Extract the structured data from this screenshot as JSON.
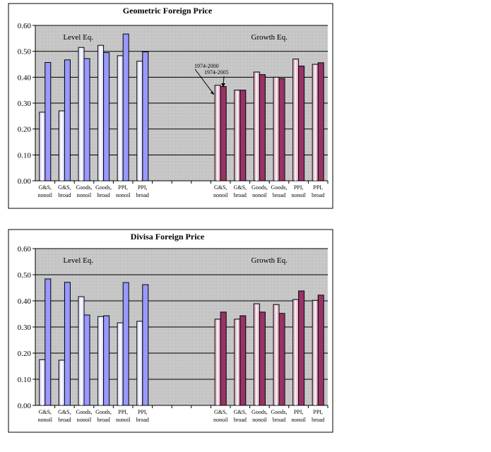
{
  "chart_data": [
    {
      "type": "bar",
      "title": "Geometric Foreign Price",
      "ylim": [
        0,
        0.6
      ],
      "yticks": [
        "0.00",
        "0.10",
        "0.20",
        "0.30",
        "0.40",
        "0.50",
        "0.60"
      ],
      "categories": [
        "G&S, nonoil",
        "G&S, broad",
        "Goods, nonoil",
        "Goods, broad",
        "PPI, nonoil",
        "PPI, broad",
        "",
        "",
        "",
        "G&S, nonoil",
        "G&S, broad",
        "Goods, nonoil",
        "Goods, broad",
        "PPI, nonoil",
        "PPI, broad"
      ],
      "group_labels": [
        "Level Eq.",
        "Growth Eq."
      ],
      "annotations": [
        "1974-2000",
        "1974-2005"
      ],
      "series": [
        {
          "name": "1974-2000",
          "values": [
            0.265,
            0.27,
            0.515,
            0.523,
            0.483,
            0.462,
            null,
            null,
            null,
            0.369,
            0.35,
            0.42,
            0.4,
            0.47,
            0.45
          ]
        },
        {
          "name": "1974-2005",
          "values": [
            0.457,
            0.467,
            0.472,
            0.495,
            0.567,
            0.498,
            null,
            null,
            null,
            0.364,
            0.35,
            0.41,
            0.395,
            0.443,
            0.456
          ]
        }
      ],
      "colors": {
        "level_light": "#e6e6ff",
        "level_dark": "#9999ff",
        "growth_light": "#e6c0d0",
        "growth_dark": "#993366",
        "plot_bg": "#c0c0c0"
      }
    },
    {
      "type": "bar",
      "title": "Divisa Foreign Price",
      "ylim": [
        0,
        0.6
      ],
      "yticks": [
        "0.00",
        "0.10",
        "0.20",
        "0.30",
        "0.40",
        "0.50",
        "0.60"
      ],
      "categories": [
        "G&S, nonoil",
        "G&S, broad",
        "Goods, nonoil",
        "Goods, broad",
        "PPI, nonoil",
        "PPI, broad",
        "",
        "",
        "",
        "G&S, nonoil",
        "G&S, broad",
        "Goods, nonoil",
        "Goods, broad",
        "PPI, nonoil",
        "PPI, broad"
      ],
      "group_labels": [
        "Level Eq.",
        "Growth Eq."
      ],
      "series": [
        {
          "name": "1974-2000",
          "values": [
            0.175,
            0.173,
            0.416,
            0.34,
            0.316,
            0.322,
            null,
            null,
            null,
            0.33,
            0.33,
            0.389,
            0.386,
            0.405,
            0.402
          ]
        },
        {
          "name": "1974-2005",
          "values": [
            0.484,
            0.471,
            0.346,
            0.343,
            0.47,
            0.462,
            null,
            null,
            null,
            0.357,
            0.343,
            0.357,
            0.352,
            0.438,
            0.422
          ]
        }
      ],
      "colors": {
        "level_light": "#e6e6ff",
        "level_dark": "#9999ff",
        "growth_light": "#e6c0d0",
        "growth_dark": "#993366",
        "plot_bg": "#c0c0c0"
      }
    }
  ]
}
